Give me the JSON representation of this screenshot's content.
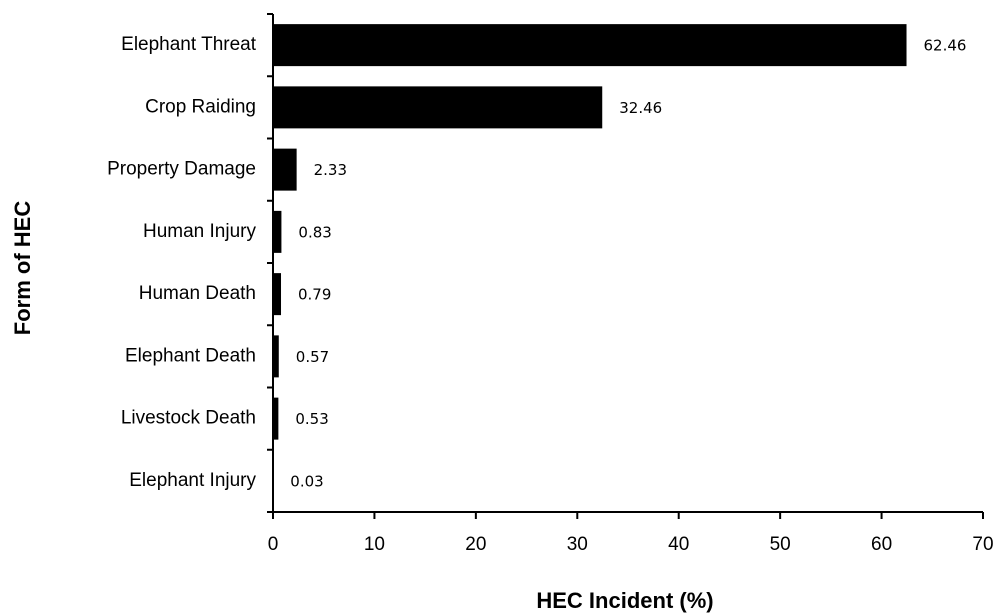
{
  "chart_data": {
    "type": "barh",
    "categories": [
      "Elephant Threat",
      "Crop Raiding",
      "Property Damage",
      "Human Injury",
      "Human Death",
      "Elephant Death",
      "Livestock Death",
      "Elephant Injury"
    ],
    "values": [
      62.46,
      32.46,
      2.33,
      0.83,
      0.79,
      0.57,
      0.53,
      0.03
    ],
    "color": "#000000",
    "xlabel": "HEC Incident (%)",
    "ylabel": "Form of HEC",
    "xlim": [
      0,
      70
    ],
    "xticks": [
      0,
      10,
      20,
      30,
      40,
      50,
      60,
      70
    ],
    "grid": false
  }
}
